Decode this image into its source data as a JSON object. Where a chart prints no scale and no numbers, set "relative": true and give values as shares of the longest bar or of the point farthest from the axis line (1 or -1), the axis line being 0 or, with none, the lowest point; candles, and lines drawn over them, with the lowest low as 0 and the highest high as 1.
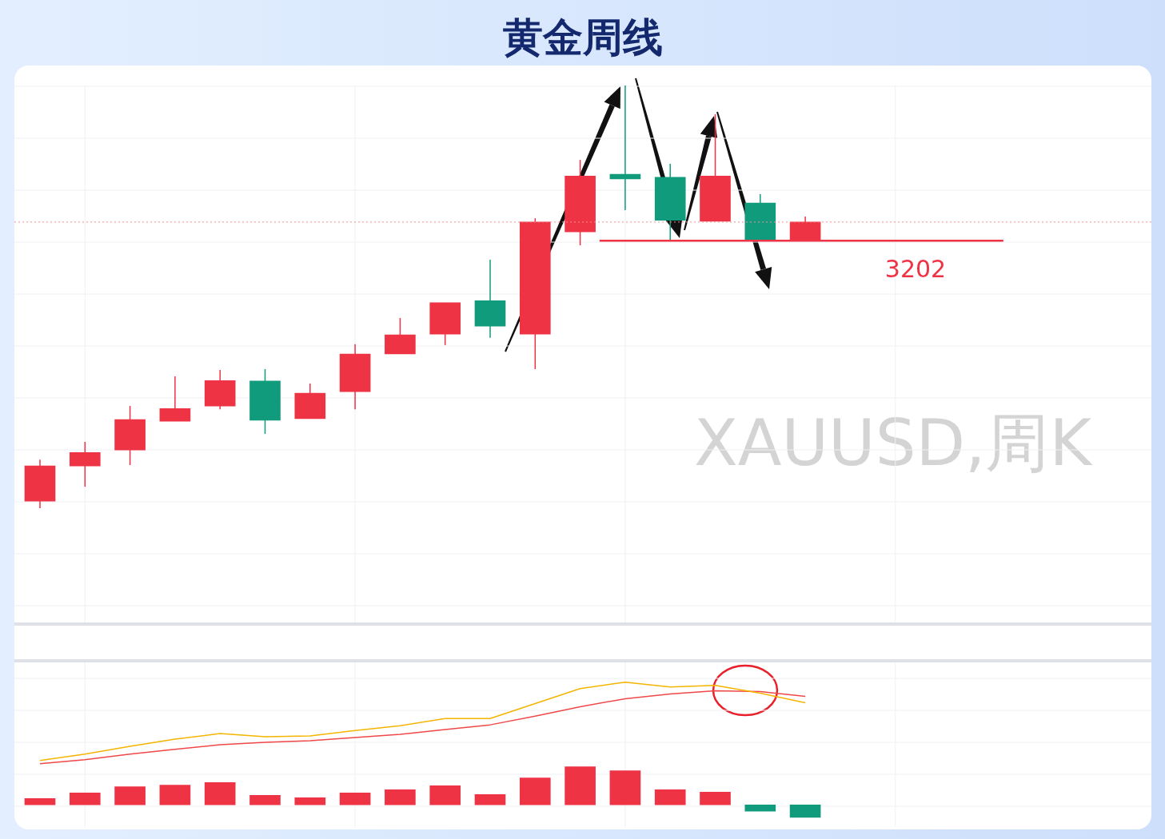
{
  "chart_data": [
    {
      "type": "candlestick",
      "title": "黄金周线",
      "relative": true,
      "grid": true,
      "categories": [
        null,
        null,
        null,
        null,
        null,
        null,
        null,
        null,
        null,
        null,
        null,
        null,
        null,
        null,
        null,
        null,
        null,
        null
      ],
      "ohlc": [
        [
          0.017,
          0.115,
          0,
          0.1
        ],
        [
          0.1,
          0.157,
          0.051,
          0.132
        ],
        [
          0.138,
          0.242,
          0.102,
          0.21
        ],
        [
          0.206,
          0.312,
          0.206,
          0.236
        ],
        [
          0.242,
          0.327,
          0.234,
          0.302
        ],
        [
          0.301,
          0.329,
          0.176,
          0.208
        ],
        [
          0.212,
          0.295,
          0.212,
          0.272
        ],
        [
          0.276,
          0.388,
          0.234,
          0.365
        ],
        [
          0.365,
          0.45,
          0.365,
          0.41
        ],
        [
          0.412,
          0.486,
          0.386,
          0.486
        ],
        [
          0.491,
          0.588,
          0.403,
          0.431
        ],
        [
          0.412,
          0.686,
          0.329,
          0.677
        ],
        [
          0.654,
          0.824,
          0.622,
          0.786
        ],
        [
          0.79,
          1,
          0.705,
          0.779
        ],
        [
          0.783,
          0.815,
          0.635,
          0.681
        ],
        [
          0.679,
          0.932,
          0.679,
          0.786
        ],
        [
          0.722,
          0.743,
          0.635,
          0.635
        ],
        [
          0.635,
          0.69,
          0.635,
          0.677
        ]
      ],
      "colors": [
        "#ee3344",
        "#ee3344",
        "#ee3344",
        "#ee3344",
        "#ee3344",
        "#109b7d",
        "#ee3344",
        "#ee3344",
        "#ee3344",
        "#ee3344",
        "#109b7d",
        "#ee3344",
        "#ee3344",
        "#109b7d",
        "#109b7d",
        "#ee3344",
        "#109b7d",
        "#ee3344"
      ],
      "ref_lines": [
        {
          "axis": "y",
          "value": 0.633,
          "color": "#ee3344",
          "line_style": "solid"
        },
        {
          "axis": "y",
          "value": 0.677,
          "color": "#f08c8c",
          "line_style": "dotted"
        }
      ],
      "annotations": [
        "XAUUSD,周K",
        "3202"
      ]
    },
    {
      "type": "bar",
      "relative": true,
      "grid": true,
      "marker": "none",
      "categories": [
        null,
        null,
        null,
        null,
        null,
        null,
        null,
        null,
        null,
        null,
        null,
        null,
        null,
        null,
        null,
        null,
        null,
        null
      ],
      "series": [
        {
          "type": "bar",
          "colors": [
            "#ee3344",
            "#ee3344",
            "#ee3344",
            "#ee3344",
            "#ee3344",
            "#ee3344",
            "#ee3344",
            "#ee3344",
            "#ee3344",
            "#ee3344",
            "#ee3344",
            "#ee3344",
            "#ee3344",
            "#ee3344",
            "#ee3344",
            "#ee3344",
            "#109b7d",
            "#109b7d"
          ],
          "values": [
            0.052,
            0.097,
            0.148,
            0.161,
            0.181,
            0.077,
            0.058,
            0.097,
            0.123,
            0.155,
            0.084,
            0.219,
            0.31,
            0.277,
            0.123,
            0.103,
            -0.052,
            -0.103
          ]
        },
        {
          "type": "line",
          "color": "#f5b400",
          "values": [
            0.361,
            0.413,
            0.477,
            0.535,
            0.581,
            0.555,
            0.561,
            0.606,
            0.645,
            0.703,
            0.703,
            0.826,
            0.948,
            1,
            0.961,
            0.974,
            0.91,
            0.832
          ]
        },
        {
          "type": "line",
          "color": "#f04848",
          "values": [
            0.335,
            0.368,
            0.413,
            0.452,
            0.49,
            0.51,
            0.523,
            0.548,
            0.574,
            0.613,
            0.652,
            0.723,
            0.8,
            0.865,
            0.903,
            0.929,
            0.923,
            0.884
          ]
        }
      ]
    }
  ]
}
